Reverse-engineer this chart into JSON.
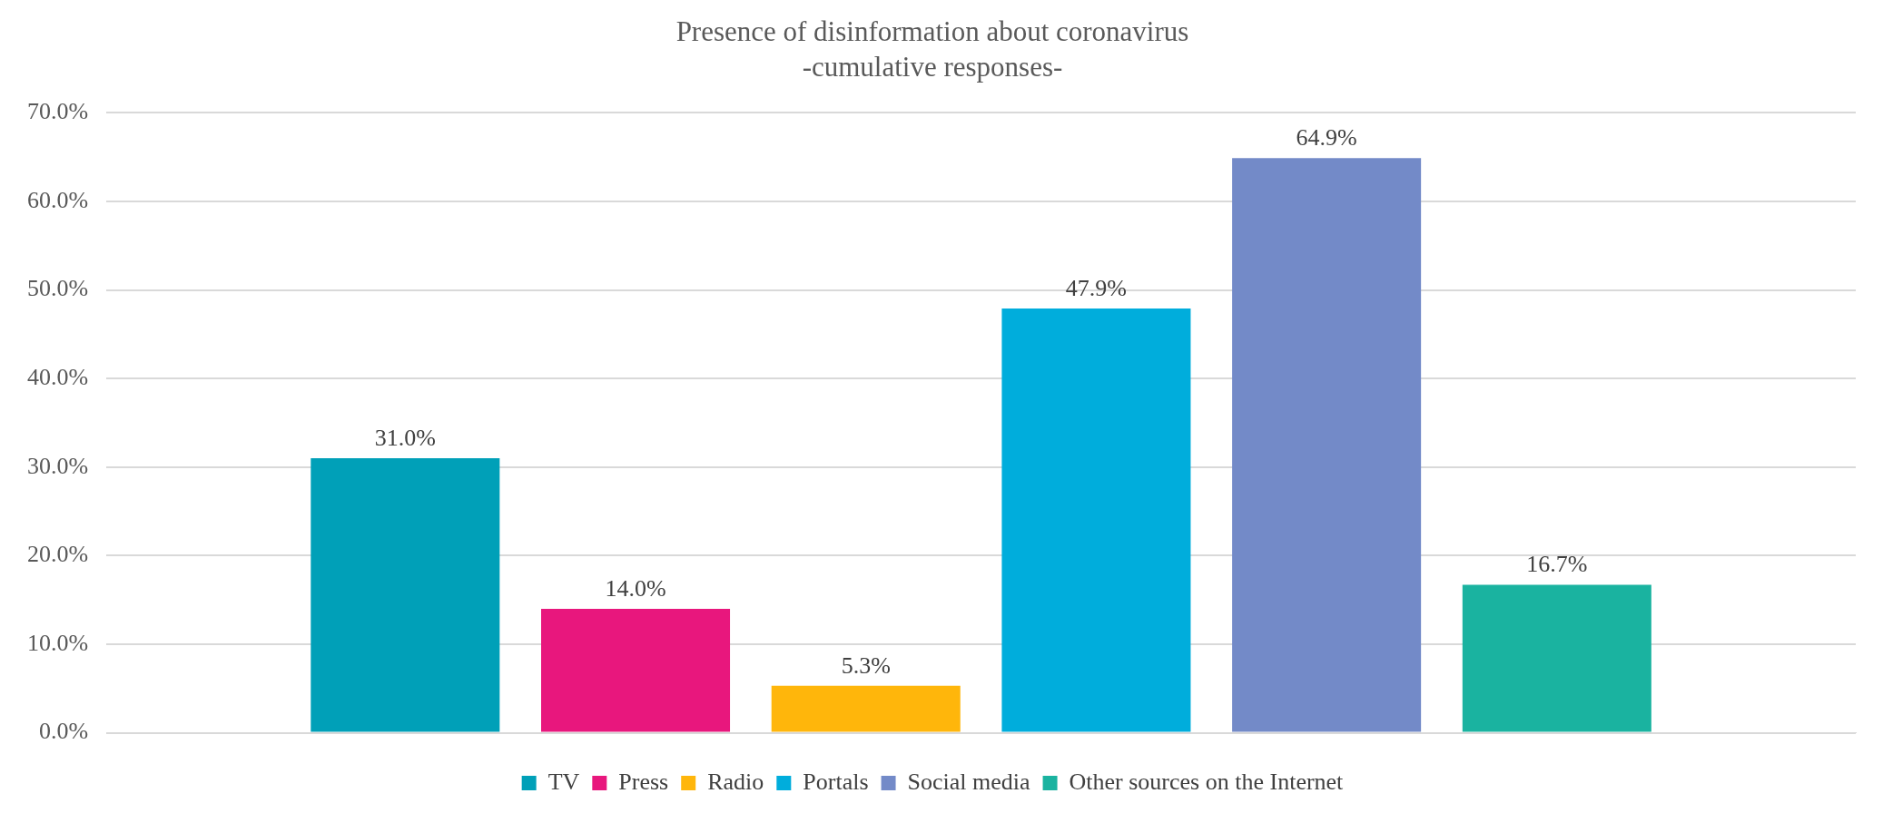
{
  "chart_data": {
    "type": "bar",
    "title": "Presence of disinformation about coronavirus",
    "subtitle": "-cumulative responses-",
    "categories": [
      null
    ],
    "series": [
      {
        "name": "TV",
        "color": "#00a0b8",
        "values": [
          31.0
        ],
        "value_labels": [
          "31.0%"
        ]
      },
      {
        "name": "Press",
        "color": "#e8177d",
        "values": [
          14.0
        ],
        "value_labels": [
          "14.0%"
        ]
      },
      {
        "name": "Radio",
        "color": "#ffb60b",
        "values": [
          5.3
        ],
        "value_labels": [
          "5.3%"
        ]
      },
      {
        "name": "Portals",
        "color": "#00addc",
        "values": [
          47.9
        ],
        "value_labels": [
          "47.9%"
        ]
      },
      {
        "name": "Social media",
        "color": "#738ac8",
        "values": [
          64.9
        ],
        "value_labels": [
          "64.9%"
        ]
      },
      {
        "name": "Other sources on the Internet",
        "color": "#1ab3a0",
        "values": [
          16.7
        ],
        "value_labels": [
          "16.7%"
        ]
      }
    ],
    "ylim": [
      0,
      70
    ],
    "yticks": [
      {
        "value": 0,
        "label": "0.0%"
      },
      {
        "value": 10,
        "label": "10.0%"
      },
      {
        "value": 20,
        "label": "20.0%"
      },
      {
        "value": 30,
        "label": "30.0%"
      },
      {
        "value": 40,
        "label": "40.0%"
      },
      {
        "value": 50,
        "label": "50.0%"
      },
      {
        "value": 60,
        "label": "60.0%"
      },
      {
        "value": 70,
        "label": "70.0%"
      }
    ],
    "grid": "y",
    "legend": "bottom"
  }
}
